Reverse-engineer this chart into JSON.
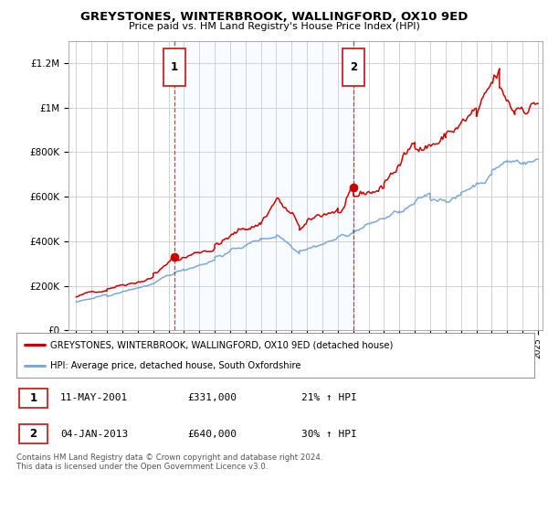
{
  "title": "GREYSTONES, WINTERBROOK, WALLINGFORD, OX10 9ED",
  "subtitle": "Price paid vs. HM Land Registry's House Price Index (HPI)",
  "legend_line1": "GREYSTONES, WINTERBROOK, WALLINGFORD, OX10 9ED (detached house)",
  "legend_line2": "HPI: Average price, detached house, South Oxfordshire",
  "annotation1_date": "11-MAY-2001",
  "annotation1_value": "£331,000",
  "annotation1_hpi": "21% ↑ HPI",
  "annotation1_year": 2001.37,
  "annotation1_price": 331000,
  "annotation2_date": "04-JAN-2013",
  "annotation2_value": "£640,000",
  "annotation2_hpi": "30% ↑ HPI",
  "annotation2_year": 2013.01,
  "annotation2_price": 640000,
  "red_color": "#cc0000",
  "blue_color": "#7aaadd",
  "shade_color": "#ddeeff",
  "grid_color": "#cccccc",
  "ylim": [
    0,
    1300000
  ],
  "xlim_start": 1994.5,
  "xlim_end": 2025.3,
  "footer_text": "Contains HM Land Registry data © Crown copyright and database right 2024.\nThis data is licensed under the Open Government Licence v3.0."
}
